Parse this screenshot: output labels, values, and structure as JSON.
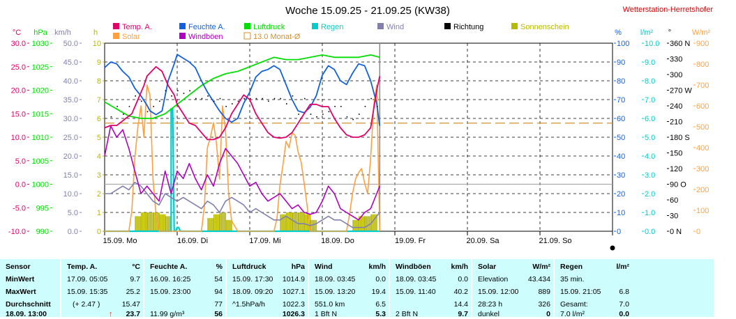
{
  "title": "Woche 15.09.25 - 21.09.25 (KW38)",
  "station": "Wetterstation-Herretshofer",
  "colors": {
    "temp": "#e0006a",
    "humidity": "#1060e0",
    "pressure": "#00dd00",
    "rain": "#00cccc",
    "wind": "#8080b0",
    "direction": "#000000",
    "sunshine": "#b8b800",
    "solar": "#ffa040",
    "gusts": "#b000c0",
    "month_avg": "#d09030",
    "table_bg": "#cdfdfd"
  },
  "legend": [
    {
      "label": "Temp. A.",
      "color": "#e0006a",
      "kind": "box"
    },
    {
      "label": "Feuchte A.",
      "color": "#1060e0",
      "kind": "box"
    },
    {
      "label": "Luftdruck",
      "color": "#00dd00",
      "kind": "box"
    },
    {
      "label": "Regen",
      "color": "#00cccc",
      "kind": "box"
    },
    {
      "label": "Wind",
      "color": "#8080b0",
      "kind": "box"
    },
    {
      "label": "Richtung",
      "color": "#000000",
      "kind": "box"
    },
    {
      "label": "Sonnenschein",
      "color": "#b8b800",
      "kind": "box"
    },
    {
      "label": "Solar",
      "color": "#ffa040",
      "kind": "box"
    },
    {
      "label": "Windböen",
      "color": "#b000c0",
      "kind": "box"
    },
    {
      "label": "13.0 Monat-Ø",
      "color": "#d09030",
      "kind": "outline"
    }
  ],
  "axes": {
    "units_left": [
      "°C",
      "hPa",
      "km/h",
      "h"
    ],
    "units_right": [
      "%",
      "l/m²",
      "°",
      "W/m²"
    ],
    "temp": [
      "30.0",
      "25.0",
      "20.0",
      "15.0",
      "10.0",
      "5.0",
      "0.0",
      "-5.0",
      "-10.0"
    ],
    "pressure": [
      "1030",
      "1025",
      "1020",
      "1015",
      "1010",
      "1005",
      "1000",
      "995",
      "990"
    ],
    "wind": [
      "50.0",
      "45.0",
      "40.0",
      "35.0",
      "30.0",
      "25.0",
      "20.0",
      "15.0",
      "10.0",
      "5.0",
      "0.0"
    ],
    "sunshine": [
      "10",
      "9",
      "8",
      "7",
      "6",
      "5",
      "4",
      "3",
      "2",
      "1",
      "0"
    ],
    "humidity": [
      "100",
      "90",
      "80",
      "70",
      "60",
      "50",
      "40",
      "30",
      "20",
      "10",
      "0"
    ],
    "rain": [
      "10.0",
      "9.0",
      "8.0",
      "7.0",
      "6.0",
      "5.0",
      "4.0",
      "3.0",
      "2.0",
      "1.0",
      "0.0"
    ],
    "direction": [
      "360 N",
      "330",
      "300",
      "270 W",
      "240",
      "210",
      "180 S",
      "150",
      "120",
      "90  O",
      "60",
      "30",
      "0   N"
    ],
    "solar": [
      "900",
      "800",
      "700",
      "600",
      "500",
      "400",
      "300",
      "200",
      "100",
      "0"
    ],
    "days": [
      "15.09.  Mo",
      "16.09.  Di",
      "17.09.  Mi",
      "18.09.  Do",
      "19.09.  Fr",
      "20.09.  Sa",
      "21.09.  So"
    ]
  },
  "chart_data": {
    "type": "line",
    "title": "Woche 15.09.25 - 21.09.25 (KW38)",
    "x_unit": "hours since 15.09. 00:00",
    "x_range": [
      0,
      168
    ],
    "grid": true,
    "reference_lines": [
      {
        "name": "13.0 Monat-Ø",
        "axis": "temp",
        "value": 13.0
      }
    ],
    "series": [
      {
        "name": "Temp. A.",
        "axis": "temp",
        "x": [
          0,
          2,
          4,
          5,
          7,
          9,
          11,
          13,
          14,
          15.5,
          17,
          19,
          21,
          23,
          24,
          26,
          28,
          30,
          32,
          34,
          36,
          38,
          40,
          42,
          44,
          46,
          48,
          50,
          52,
          54,
          56,
          58,
          60,
          62,
          64,
          66,
          68,
          70,
          72,
          74,
          76,
          78,
          80,
          82,
          84,
          86,
          88,
          90,
          91
        ],
        "y": [
          12,
          12.5,
          12.5,
          13,
          14,
          15,
          18,
          21,
          23,
          24,
          25,
          24,
          21,
          19,
          17,
          15,
          13,
          12.5,
          11,
          9.5,
          9.5,
          10,
          12,
          15,
          17,
          19,
          18,
          15,
          13,
          11,
          10,
          9.8,
          10,
          11,
          13,
          15,
          17,
          17,
          16.5,
          16.5,
          14,
          12,
          10.5,
          10,
          10,
          10.5,
          12,
          20,
          23
        ]
      },
      {
        "name": "Feuchte A.",
        "axis": "humidity",
        "x": [
          0,
          2,
          4,
          6,
          8,
          10,
          12,
          14,
          15,
          17,
          19,
          21,
          23,
          24,
          26,
          28,
          30,
          32,
          34,
          36,
          38,
          40,
          42,
          44,
          46,
          48,
          50,
          52,
          54,
          56,
          58,
          60,
          62,
          64,
          66,
          68,
          70,
          72,
          74,
          76,
          78,
          80,
          82,
          84,
          86,
          88,
          90,
          91
        ],
        "y": [
          87,
          90,
          89,
          85,
          82,
          76,
          72,
          67,
          64,
          62,
          64,
          80,
          89,
          94,
          92,
          90,
          87,
          80,
          74,
          69,
          64,
          60,
          58,
          60,
          68,
          74,
          82,
          85,
          86,
          88,
          86,
          78,
          70,
          64,
          63,
          66,
          72,
          83,
          88,
          86,
          80,
          78,
          84,
          89,
          88,
          80,
          68,
          56
        ]
      },
      {
        "name": "Luftdruck",
        "axis": "pressure",
        "x": [
          0,
          4,
          8,
          12,
          16,
          20,
          24,
          28,
          32,
          36,
          40,
          44,
          48,
          52,
          56,
          60,
          64,
          68,
          72,
          76,
          80,
          84,
          88,
          91
        ],
        "y": [
          1017.5,
          1016,
          1014.5,
          1014,
          1014,
          1015,
          1017,
          1019,
          1021,
          1022.5,
          1023.5,
          1024,
          1025,
          1026,
          1027,
          1026.5,
          1026.5,
          1027,
          1027.5,
          1027,
          1027,
          1027,
          1027.5,
          1027
        ]
      },
      {
        "name": "Windböen",
        "axis": "wind",
        "x": [
          0,
          2,
          4,
          6,
          8,
          10,
          12,
          14,
          16,
          18,
          20,
          22,
          24,
          26,
          28,
          30,
          32,
          34,
          36,
          38,
          40,
          42,
          44,
          46,
          48,
          50,
          52,
          54,
          56,
          58,
          60,
          62,
          64,
          66,
          68,
          70,
          72,
          74,
          76,
          78,
          80,
          82,
          84,
          86,
          88,
          90,
          91
        ],
        "y": [
          20,
          28,
          25,
          27,
          22,
          16,
          10,
          12,
          10,
          8,
          16,
          10,
          16,
          14,
          18,
          14,
          11,
          15,
          12,
          18,
          22,
          20,
          18,
          15,
          12,
          13,
          10,
          8,
          9,
          10,
          8,
          6,
          7,
          5,
          4.5,
          5,
          8,
          12,
          10,
          6,
          5,
          4,
          3,
          5,
          6,
          10,
          12
        ]
      },
      {
        "name": "Wind",
        "axis": "wind",
        "x": [
          0,
          2,
          4,
          6,
          8,
          10,
          12,
          14,
          16,
          18,
          20,
          22,
          24,
          26,
          28,
          30,
          32,
          34,
          36,
          38,
          40,
          42,
          44,
          46,
          48,
          50,
          52,
          54,
          56,
          58,
          60,
          62,
          64,
          66,
          68,
          70,
          72,
          74,
          76,
          78,
          80,
          82,
          84,
          86,
          88,
          90,
          91
        ],
        "y": [
          10,
          10,
          11,
          12,
          11,
          13,
          12,
          10,
          8,
          7,
          10,
          9,
          8,
          9,
          8,
          7,
          6,
          8,
          7,
          5,
          8,
          9,
          8,
          7,
          5,
          6,
          5,
          4,
          3,
          3,
          4,
          3,
          2,
          2,
          1.5,
          2,
          3,
          4,
          3,
          3,
          2,
          1,
          1,
          1,
          2,
          4,
          5
        ]
      },
      {
        "name": "Solar",
        "axis": "solar",
        "x": [
          0,
          8,
          9,
          10,
          11,
          12,
          13,
          14,
          15,
          16,
          17,
          18,
          19,
          20,
          32,
          33,
          34,
          35,
          36,
          37,
          38,
          39,
          40,
          41,
          42,
          44,
          56,
          57,
          58,
          59,
          60,
          61,
          62,
          63,
          64,
          65,
          66,
          67,
          68,
          80,
          81,
          82,
          83,
          84,
          85,
          86,
          87,
          88,
          89,
          90,
          91
        ],
        "y": [
          0,
          0,
          100,
          350,
          500,
          600,
          450,
          700,
          650,
          250,
          80,
          0,
          0,
          0,
          0,
          120,
          400,
          450,
          520,
          420,
          250,
          600,
          480,
          180,
          50,
          0,
          0,
          60,
          220,
          320,
          430,
          400,
          470,
          460,
          380,
          330,
          230,
          120,
          0,
          0,
          80,
          180,
          250,
          280,
          300,
          230,
          180,
          350,
          600,
          700,
          0
        ]
      },
      {
        "name": "Regen",
        "axis": "rain",
        "x": [
          0,
          22,
          22,
          22.5,
          23,
          23.5,
          24,
          24.5,
          25,
          91
        ],
        "y": [
          0,
          0,
          6.5,
          6.5,
          0,
          0,
          0.2,
          0.2,
          0,
          0
        ]
      },
      {
        "name": "Richtung",
        "axis": "direction",
        "x": [
          2,
          4,
          6,
          8,
          10,
          12,
          14,
          16,
          18,
          20,
          22,
          24,
          26,
          28,
          30,
          32,
          34,
          36,
          38,
          40,
          42,
          44,
          46,
          48,
          50,
          52,
          54,
          56,
          58,
          60,
          62,
          64,
          66,
          68,
          70,
          72,
          74,
          76,
          78,
          80,
          82,
          84,
          86,
          88,
          90
        ],
        "y": [
          220,
          240,
          225,
          240,
          260,
          250,
          230,
          240,
          250,
          270,
          260,
          270,
          265,
          270,
          255,
          255,
          260,
          250,
          255,
          240,
          245,
          250,
          255,
          255,
          255,
          255,
          250,
          255,
          255,
          245,
          260,
          225,
          255,
          225,
          220,
          225,
          230,
          240,
          240,
          220,
          215,
          225,
          240,
          255,
          240
        ]
      },
      {
        "name": "Sonnenschein",
        "axis": "sunshine",
        "x": [
          11,
          13,
          15,
          17,
          19,
          21,
          35,
          37,
          39,
          41,
          59,
          61,
          63,
          65,
          67,
          69,
          83,
          85,
          87,
          89
        ],
        "y": [
          0.8,
          1,
          1,
          1,
          0.9,
          0.8,
          0.7,
          0.9,
          1,
          0.6,
          0.9,
          1,
          1,
          1,
          0.9,
          0.6,
          0.6,
          0.8,
          0.8,
          0.9
        ]
      }
    ]
  },
  "table": {
    "columns": [
      {
        "title": "Sensor",
        "unit": ""
      },
      {
        "title": "Temp. A.",
        "unit": "°C"
      },
      {
        "title": "Feuchte A.",
        "unit": "%"
      },
      {
        "title": "Luftdruck",
        "unit": "hPa"
      },
      {
        "title": "Wind",
        "unit": "km/h"
      },
      {
        "title": "Windböen",
        "unit": "km/h"
      },
      {
        "title": "Solar",
        "unit": "W/m²"
      },
      {
        "title": "Regen",
        "unit": "l/m²"
      }
    ],
    "rows": [
      {
        "label": "MinWert",
        "cells": [
          [
            "17.09.  05:05",
            "9.7"
          ],
          [
            "16.09.  16:25",
            "54"
          ],
          [
            "15.09.  17:30",
            "1014.9"
          ],
          [
            "18.09.  03:45",
            "0.0"
          ],
          [
            "18.09.  03:45",
            "0.0"
          ],
          [
            "Elevation",
            "43.434"
          ],
          [
            "35 min.",
            ""
          ]
        ]
      },
      {
        "label": "MaxWert",
        "cells": [
          [
            "15.09.  15:35",
            "25.2"
          ],
          [
            "15.09.  23:00",
            "94"
          ],
          [
            "18.09.  09:20",
            "1027.1"
          ],
          [
            "15.09.  13:20",
            "19.4"
          ],
          [
            "15.09.  11:40",
            "40.2"
          ],
          [
            "15.09.  12:00",
            "889"
          ],
          [
            "15.09.  21:05",
            "6.8"
          ]
        ]
      },
      {
        "label": "Durchschnitt",
        "cells": [
          [
            "(+ 2.47 )",
            "15.47"
          ],
          [
            "",
            "77"
          ],
          [
            "^1.5hPa/h",
            "1022.3"
          ],
          [
            "551.0 km",
            "6.5"
          ],
          [
            "",
            "14.4"
          ],
          [
            "28:23 h",
            "326"
          ],
          [
            "Gesamt:",
            "7.0"
          ]
        ]
      },
      {
        "label": "18.09.  13:00",
        "cells": [
          [
            "↑",
            "23.7"
          ],
          [
            "11.99 g/m³",
            "56"
          ],
          [
            "",
            "1026.3"
          ],
          [
            "1 Bft N",
            "5.3"
          ],
          [
            "2 Bft N",
            "9.7"
          ],
          [
            "dunkel",
            "0"
          ],
          [
            "7.0 l/m²",
            "0.0"
          ]
        ]
      }
    ]
  }
}
